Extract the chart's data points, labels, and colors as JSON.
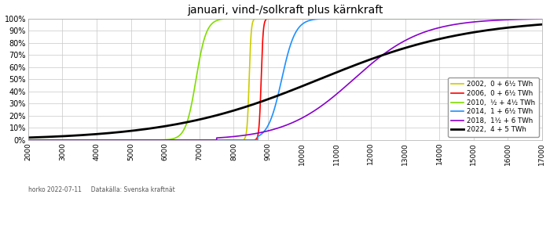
{
  "title": "januari, vind-/solkraft plus kärnkraft",
  "xmin": 2000,
  "xmax": 17000,
  "ymin": 0.0,
  "ymax": 1.0,
  "yticks": [
    0.0,
    0.1,
    0.2,
    0.3,
    0.4,
    0.5,
    0.6,
    0.7,
    0.8,
    0.9,
    1.0
  ],
  "ytick_labels": [
    "0%",
    "10%",
    "20%",
    "30%",
    "40%",
    "50%",
    "60%",
    "70%",
    "80%",
    "90%",
    "100%"
  ],
  "xticks": [
    2000,
    3000,
    4000,
    5000,
    6000,
    7000,
    8000,
    9000,
    10000,
    11000,
    12000,
    13000,
    14000,
    15000,
    16000,
    17000
  ],
  "footnote": "horko 2022-07-11     Datakälla: Svenska kraftnät",
  "series": [
    {
      "label": "2002,  0 + 6½ TWh",
      "color": "#CCCC00",
      "lw": 1.2,
      "midpoint": 8450,
      "scale": 30,
      "clip_lo": 8300,
      "clip_hi": 8700
    },
    {
      "label": "2006,  0 + 6½ TWh",
      "color": "#FF0000",
      "lw": 1.2,
      "midpoint": 8800,
      "scale": 30,
      "clip_lo": 8600,
      "clip_hi": 9000
    },
    {
      "label": "2010,  ½ + 4½ TWh",
      "color": "#80DD00",
      "lw": 1.2,
      "midpoint": 6900,
      "scale": 150,
      "clip_lo": 5800,
      "clip_hi": 8400
    },
    {
      "label": "2014,  1 + 6½ TWh",
      "color": "#1E90FF",
      "lw": 1.2,
      "midpoint": 9400,
      "scale": 200,
      "clip_lo": 8700,
      "clip_hi": 11000
    },
    {
      "label": "2018,  1½ + 6 TWh",
      "color": "#8800CC",
      "lw": 1.2,
      "midpoint": 11500,
      "scale": 1000,
      "clip_lo": 7500,
      "clip_hi": 17000
    },
    {
      "label": "2022,  4 + 5 TWh",
      "color": "#000000",
      "lw": 2.0,
      "midpoint": 10500,
      "scale": 2200,
      "clip_lo": 2000,
      "clip_hi": 17000
    }
  ]
}
